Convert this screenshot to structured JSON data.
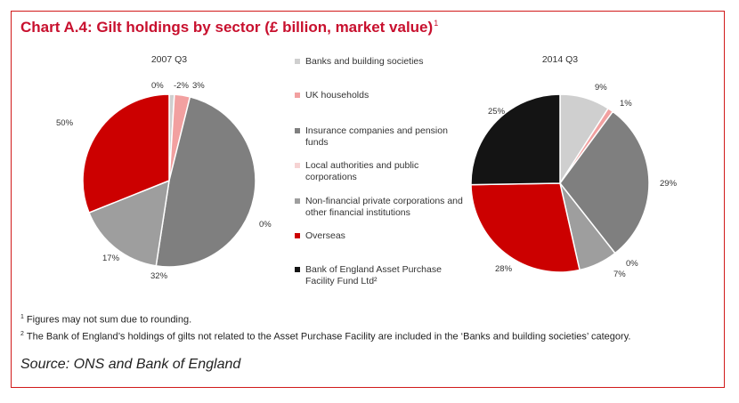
{
  "title": "Chart A.4: Gilt holdings by sector (£ billion, market value)",
  "title_footnote_mark": "1",
  "legend": [
    {
      "label": "Banks and building societies",
      "color": "#cfcfcf"
    },
    {
      "label": "UK households",
      "color": "#f2a0a0"
    },
    {
      "label": "Insurance companies and pension funds",
      "color": "#7f7f7f"
    },
    {
      "label": "Local authorities and public corporations",
      "color": "#f6d3d3"
    },
    {
      "label": "Non-financial private corporations and other financial institutions",
      "color": "#9e9e9e"
    },
    {
      "label": "Overseas",
      "color": "#cc0000"
    },
    {
      "label": "Bank of England Asset Purchase Facility Fund Ltd²",
      "color": "#141414"
    }
  ],
  "chart_data": [
    {
      "type": "pie",
      "title": "2007 Q3",
      "series": [
        {
          "name": "",
          "values": [
            -2,
            3,
            50,
            0,
            17,
            32,
            0
          ]
        }
      ],
      "categories": [
        "Banks and building societies",
        "UK households",
        "Insurance companies and pension funds",
        "Local authorities and public corporations",
        "Non-financial private corporations and other financial institutions",
        "Overseas",
        "Bank of England Asset Purchase Facility Fund Ltd²"
      ],
      "data_labels": [
        "-2%",
        "3%",
        "50%",
        "0%",
        "17%",
        "32%",
        "0%"
      ]
    },
    {
      "type": "pie",
      "title": "2014 Q3",
      "series": [
        {
          "name": "",
          "values": [
            9,
            1,
            29,
            0,
            7,
            28,
            25
          ]
        }
      ],
      "categories": [
        "Banks and building societies",
        "UK households",
        "Insurance companies and pension funds",
        "Local authorities and public corporations",
        "Non-financial private corporations and other financial institutions",
        "Overseas",
        "Bank of England Asset Purchase Facility Fund Ltd²"
      ],
      "data_labels": [
        "9%",
        "1%",
        "29%",
        "0%",
        "7%",
        "28%",
        "25%"
      ]
    }
  ],
  "footnotes": [
    {
      "mark": "1",
      "text": "Figures may not sum due to rounding."
    },
    {
      "mark": "2",
      "text": "The Bank of England’s holdings of gilts not related to the Asset Purchase Facility are included in the ‘Banks and building societies’ category."
    }
  ],
  "source": "Source: ONS and Bank of England"
}
